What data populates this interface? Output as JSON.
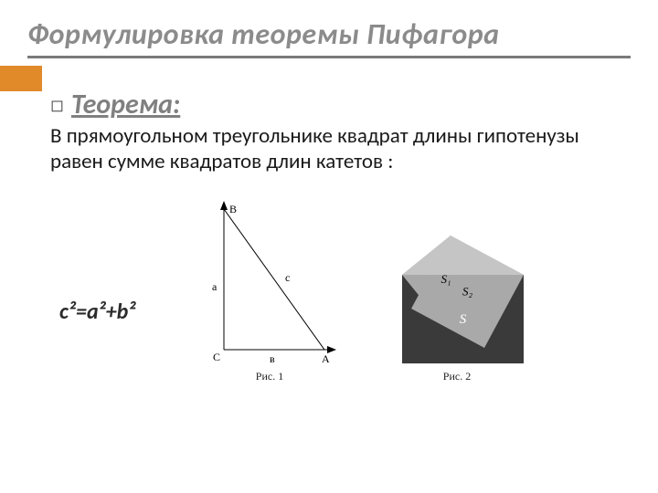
{
  "title": "Формулировка теоремы Пифагора",
  "colors": {
    "title": "#8b8b8b",
    "underline": "#7a7a7a",
    "accent": "#e08a2a",
    "theorem_label": "#808080",
    "body_text": "#1a1a1a",
    "bullet": "#404040",
    "formula": "#2b2b2b",
    "caption": "#222222",
    "fig_stroke": "#000000",
    "fig2_grey": "#a9a9a9",
    "fig2_dark": "#3a3a3a",
    "fig2_white": "#ffffff"
  },
  "theorem": {
    "label": "Теорема:",
    "body": "В прямоугольном треугольнике квадрат длины гипотенузы равен сумме квадратов длин катетов :",
    "formula": "c²=a²+b²",
    "bullet": "◻"
  },
  "fig1": {
    "caption": "Рис. 1",
    "labels": {
      "B": "B",
      "C": "C",
      "A": "A",
      "a": "a",
      "b": "в",
      "c": "c"
    },
    "type": "right-triangle",
    "font_family": "Times New Roman",
    "font_size": 12
  },
  "fig2": {
    "caption": "Рис. 2",
    "labels": {
      "s1": "S₁",
      "s2": "S₂",
      "s": "S"
    },
    "type": "pythagoras-squares",
    "font_family": "Times New Roman",
    "font_size_normal": 13,
    "font_size_big": 15
  }
}
